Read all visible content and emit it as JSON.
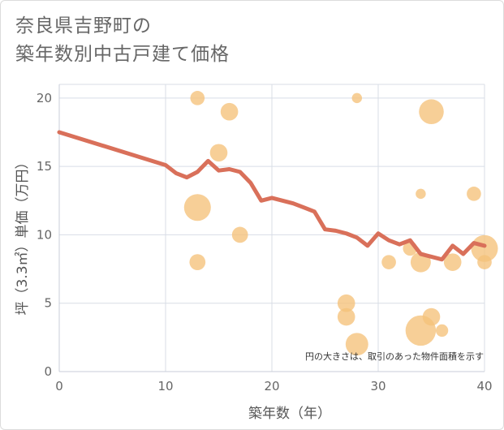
{
  "title_line1": "奈良県吉野町の",
  "title_line2": "築年数別中古戸建て価格",
  "chart_data": {
    "type": "scatter",
    "title": "奈良県吉野町の築年数別中古戸建て価格",
    "xlabel": "築年数（年）",
    "ylabel": "坪（3.3㎡）単価（万円）",
    "xlim": [
      0,
      40
    ],
    "ylim": [
      0,
      21
    ],
    "xticks": [
      0,
      10,
      20,
      30,
      40
    ],
    "yticks": [
      0,
      5,
      10,
      15,
      20
    ],
    "grid": true,
    "annotation": "円の大きさは、取引のあった物件面積を示す",
    "colors": {
      "bubble": "#f5c27a",
      "line": "#d9705a",
      "grid": "#d8dde6"
    },
    "series": [
      {
        "name": "trend",
        "type": "line",
        "x": [
          0,
          10,
          11,
          12,
          13,
          14,
          15,
          16,
          17,
          18,
          19,
          20,
          21,
          22,
          23,
          24,
          25,
          26,
          27,
          28,
          29,
          30,
          31,
          32,
          33,
          34,
          35,
          36,
          37,
          38,
          39,
          40
        ],
        "y": [
          17.5,
          15.1,
          14.5,
          14.2,
          14.6,
          15.4,
          14.7,
          14.8,
          14.6,
          13.8,
          12.5,
          12.7,
          12.5,
          12.3,
          12.0,
          11.7,
          10.4,
          10.3,
          10.1,
          9.8,
          9.2,
          10.1,
          9.6,
          9.3,
          9.6,
          8.6,
          8.4,
          8.2,
          9.2,
          8.6,
          9.4,
          9.2
        ]
      },
      {
        "name": "transactions",
        "type": "bubble",
        "points": [
          {
            "x": 13,
            "y": 20,
            "size": 2
          },
          {
            "x": 16,
            "y": 19,
            "size": 3
          },
          {
            "x": 28,
            "y": 20,
            "size": 1
          },
          {
            "x": 35,
            "y": 19,
            "size": 6
          },
          {
            "x": 15,
            "y": 16,
            "size": 3
          },
          {
            "x": 13,
            "y": 12,
            "size": 7
          },
          {
            "x": 34,
            "y": 13,
            "size": 1
          },
          {
            "x": 39,
            "y": 13,
            "size": 2
          },
          {
            "x": 17,
            "y": 10,
            "size": 2.5
          },
          {
            "x": 40,
            "y": 9,
            "size": 7
          },
          {
            "x": 33,
            "y": 9,
            "size": 2
          },
          {
            "x": 13,
            "y": 8,
            "size": 2.5
          },
          {
            "x": 31,
            "y": 8,
            "size": 2
          },
          {
            "x": 34,
            "y": 8,
            "size": 4
          },
          {
            "x": 37,
            "y": 8,
            "size": 3
          },
          {
            "x": 40,
            "y": 8,
            "size": 2
          },
          {
            "x": 27,
            "y": 5,
            "size": 3
          },
          {
            "x": 27,
            "y": 4,
            "size": 3
          },
          {
            "x": 35,
            "y": 4,
            "size": 3
          },
          {
            "x": 34,
            "y": 3,
            "size": 9
          },
          {
            "x": 36,
            "y": 3,
            "size": 1.5
          },
          {
            "x": 28,
            "y": 2,
            "size": 5
          }
        ]
      }
    ]
  }
}
